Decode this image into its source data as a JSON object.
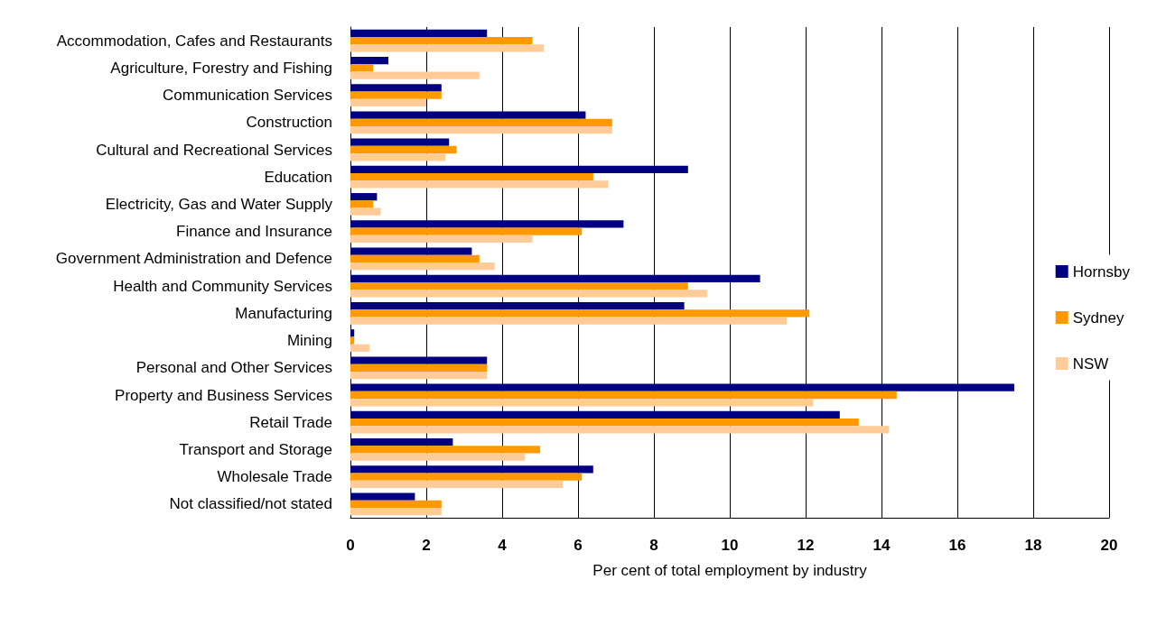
{
  "chart_data": {
    "type": "bar",
    "orientation": "horizontal",
    "xlabel": "Per cent of total employment by industry",
    "categories": [
      "Accommodation, Cafes and Restaurants",
      "Agriculture, Forestry and Fishing",
      "Communication Services",
      "Construction",
      "Cultural and Recreational Services",
      "Education",
      "Electricity, Gas and Water Supply",
      "Finance and Insurance",
      "Government Administration and Defence",
      "Health and Community Services",
      "Manufacturing",
      "Mining",
      "Personal and Other Services",
      "Property and Business Services",
      "Retail Trade",
      "Transport and Storage",
      "Wholesale Trade",
      "Not classified/not stated"
    ],
    "series": [
      {
        "name": "Hornsby",
        "color": "#000080",
        "values": [
          3.6,
          1.0,
          2.4,
          6.2,
          2.6,
          8.9,
          0.7,
          7.2,
          3.2,
          10.8,
          8.8,
          0.1,
          3.6,
          17.5,
          12.9,
          2.7,
          6.4,
          1.7
        ]
      },
      {
        "name": "Sydney",
        "color": "#ff9900",
        "values": [
          4.8,
          0.6,
          2.4,
          6.9,
          2.8,
          6.4,
          0.6,
          6.1,
          3.4,
          8.9,
          12.1,
          0.1,
          3.6,
          14.4,
          13.4,
          5.0,
          6.1,
          2.4
        ]
      },
      {
        "name": "NSW",
        "color": "#ffcc99",
        "values": [
          5.1,
          3.4,
          2.0,
          6.9,
          2.5,
          6.8,
          0.8,
          4.8,
          3.8,
          9.4,
          11.5,
          0.5,
          3.6,
          12.2,
          14.2,
          4.6,
          5.6,
          2.4
        ]
      }
    ],
    "xlim": [
      0,
      20
    ],
    "xticks": [
      0,
      2,
      4,
      6,
      8,
      10,
      12,
      14,
      16,
      18,
      20
    ],
    "grid": "x",
    "legend": "right"
  }
}
